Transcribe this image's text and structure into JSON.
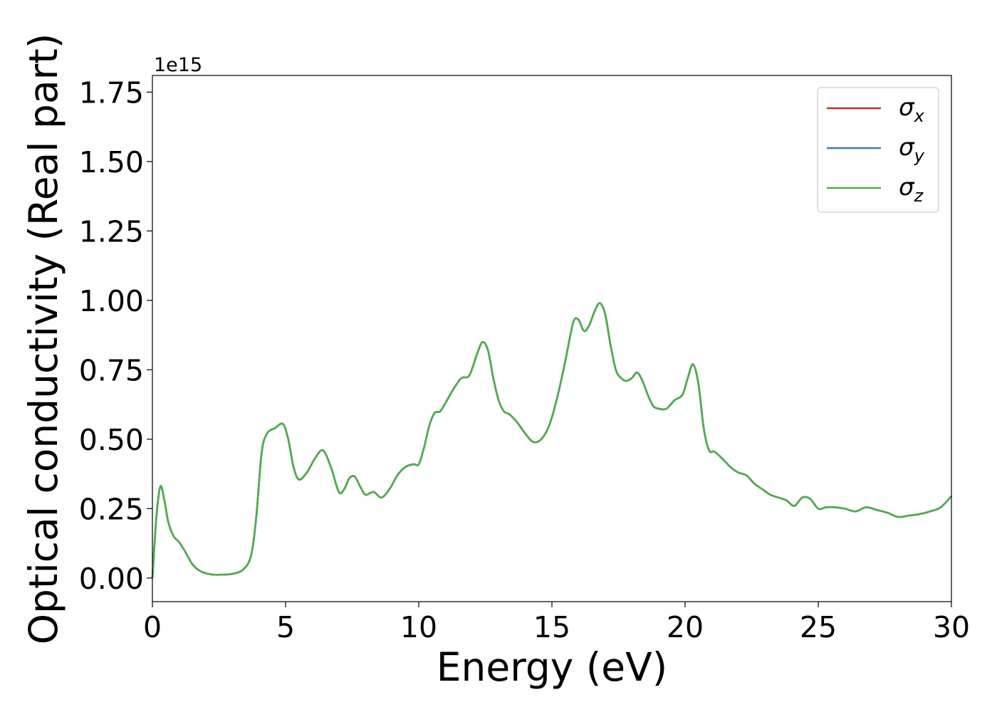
{
  "chart_data": {
    "type": "line",
    "xlabel": "Energy (eV)",
    "ylabel": "Optical conductivity (Real part)",
    "y_offset_label": "1e15",
    "xlim": [
      0,
      30
    ],
    "ylim": [
      -0.085,
      1.81
    ],
    "x_ticks": [
      0,
      5,
      10,
      15,
      20,
      25,
      30
    ],
    "x_tick_labels": [
      "0",
      "5",
      "10",
      "15",
      "20",
      "25",
      "30"
    ],
    "y_ticks": [
      0.0,
      0.25,
      0.5,
      0.75,
      1.0,
      1.25,
      1.5,
      1.75
    ],
    "y_tick_labels": [
      "0.00",
      "0.25",
      "0.50",
      "0.75",
      "1.00",
      "1.25",
      "1.50",
      "1.75"
    ],
    "grid": false,
    "legend_position": "top-right",
    "series": [
      {
        "name": "σx",
        "symbol": "σ",
        "subscript": "x",
        "color": "#d62728",
        "x": [
          0,
          0.15,
          0.3,
          0.45,
          0.6,
          0.8,
          1.0,
          1.2,
          1.5,
          1.8,
          2.2,
          2.6,
          3.0,
          3.4,
          3.7,
          3.9,
          4.1,
          4.3,
          4.6,
          4.9,
          5.1,
          5.3,
          5.5,
          5.8,
          6.1,
          6.4,
          6.7,
          7.0,
          7.2,
          7.4,
          7.6,
          7.8,
          8.0,
          8.3,
          8.6,
          8.9,
          9.2,
          9.5,
          9.8,
          10.0,
          10.2,
          10.4,
          10.6,
          10.8,
          11.0,
          11.3,
          11.6,
          11.9,
          12.2,
          12.4,
          12.6,
          12.8,
          13.0,
          13.2,
          13.4,
          13.7,
          14.0,
          14.3,
          14.6,
          14.9,
          15.2,
          15.5,
          15.8,
          16.0,
          16.2,
          16.4,
          16.6,
          16.8,
          17.0,
          17.2,
          17.4,
          17.6,
          17.8,
          18.0,
          18.2,
          18.4,
          18.6,
          18.8,
          19.0,
          19.3,
          19.6,
          19.9,
          20.1,
          20.3,
          20.5,
          20.7,
          20.9,
          21.1,
          21.4,
          21.7,
          22.0,
          22.3,
          22.6,
          22.9,
          23.2,
          23.5,
          23.8,
          24.1,
          24.4,
          24.7,
          25.0,
          25.3,
          25.6,
          26.0,
          26.4,
          26.8,
          27.2,
          27.6,
          28.0,
          28.4,
          28.8,
          29.2,
          29.6,
          30.0
        ],
        "values": [
          0.0,
          0.22,
          0.33,
          0.28,
          0.2,
          0.15,
          0.13,
          0.1,
          0.05,
          0.025,
          0.013,
          0.012,
          0.015,
          0.03,
          0.08,
          0.22,
          0.45,
          0.52,
          0.54,
          0.555,
          0.5,
          0.4,
          0.355,
          0.38,
          0.43,
          0.46,
          0.4,
          0.31,
          0.32,
          0.36,
          0.365,
          0.33,
          0.3,
          0.31,
          0.29,
          0.32,
          0.37,
          0.4,
          0.41,
          0.41,
          0.47,
          0.55,
          0.595,
          0.6,
          0.63,
          0.68,
          0.72,
          0.73,
          0.81,
          0.85,
          0.82,
          0.72,
          0.64,
          0.6,
          0.59,
          0.56,
          0.52,
          0.49,
          0.5,
          0.55,
          0.65,
          0.78,
          0.92,
          0.93,
          0.89,
          0.91,
          0.96,
          0.99,
          0.95,
          0.84,
          0.75,
          0.72,
          0.71,
          0.72,
          0.74,
          0.71,
          0.66,
          0.62,
          0.61,
          0.61,
          0.64,
          0.66,
          0.72,
          0.77,
          0.7,
          0.54,
          0.46,
          0.455,
          0.43,
          0.4,
          0.38,
          0.37,
          0.34,
          0.32,
          0.3,
          0.29,
          0.28,
          0.26,
          0.29,
          0.285,
          0.25,
          0.255,
          0.255,
          0.25,
          0.24,
          0.255,
          0.245,
          0.235,
          0.22,
          0.225,
          0.23,
          0.24,
          0.255,
          0.295
        ]
      },
      {
        "name": "σy",
        "symbol": "σ",
        "subscript": "y",
        "color": "#377eb8",
        "x": [
          0,
          0.15,
          0.3,
          0.45,
          0.6,
          0.8,
          1.0,
          1.2,
          1.5,
          1.8,
          2.2,
          2.6,
          3.0,
          3.4,
          3.7,
          3.9,
          4.1,
          4.3,
          4.6,
          4.9,
          5.1,
          5.3,
          5.5,
          5.8,
          6.1,
          6.4,
          6.7,
          7.0,
          7.2,
          7.4,
          7.6,
          7.8,
          8.0,
          8.3,
          8.6,
          8.9,
          9.2,
          9.5,
          9.8,
          10.0,
          10.2,
          10.4,
          10.6,
          10.8,
          11.0,
          11.3,
          11.6,
          11.9,
          12.2,
          12.4,
          12.6,
          12.8,
          13.0,
          13.2,
          13.4,
          13.7,
          14.0,
          14.3,
          14.6,
          14.9,
          15.2,
          15.5,
          15.8,
          16.0,
          16.2,
          16.4,
          16.6,
          16.8,
          17.0,
          17.2,
          17.4,
          17.6,
          17.8,
          18.0,
          18.2,
          18.4,
          18.6,
          18.8,
          19.0,
          19.3,
          19.6,
          19.9,
          20.1,
          20.3,
          20.5,
          20.7,
          20.9,
          21.1,
          21.4,
          21.7,
          22.0,
          22.3,
          22.6,
          22.9,
          23.2,
          23.5,
          23.8,
          24.1,
          24.4,
          24.7,
          25.0,
          25.3,
          25.6,
          26.0,
          26.4,
          26.8,
          27.2,
          27.6,
          28.0,
          28.4,
          28.8,
          29.2,
          29.6,
          30.0
        ],
        "values": [
          0.0,
          0.22,
          0.33,
          0.28,
          0.2,
          0.15,
          0.13,
          0.1,
          0.05,
          0.025,
          0.013,
          0.012,
          0.015,
          0.03,
          0.08,
          0.22,
          0.45,
          0.52,
          0.54,
          0.555,
          0.5,
          0.4,
          0.355,
          0.38,
          0.43,
          0.46,
          0.4,
          0.31,
          0.32,
          0.36,
          0.365,
          0.33,
          0.3,
          0.31,
          0.29,
          0.32,
          0.37,
          0.4,
          0.41,
          0.41,
          0.47,
          0.55,
          0.595,
          0.6,
          0.63,
          0.68,
          0.72,
          0.73,
          0.81,
          0.85,
          0.82,
          0.72,
          0.64,
          0.6,
          0.59,
          0.56,
          0.52,
          0.49,
          0.5,
          0.55,
          0.65,
          0.78,
          0.92,
          0.93,
          0.89,
          0.91,
          0.96,
          0.99,
          0.95,
          0.84,
          0.75,
          0.72,
          0.71,
          0.72,
          0.74,
          0.71,
          0.66,
          0.62,
          0.61,
          0.61,
          0.64,
          0.66,
          0.72,
          0.77,
          0.7,
          0.54,
          0.46,
          0.455,
          0.43,
          0.4,
          0.38,
          0.37,
          0.34,
          0.32,
          0.3,
          0.29,
          0.28,
          0.26,
          0.29,
          0.285,
          0.25,
          0.255,
          0.255,
          0.25,
          0.24,
          0.255,
          0.245,
          0.235,
          0.22,
          0.225,
          0.23,
          0.24,
          0.255,
          0.295
        ]
      },
      {
        "name": "σz",
        "symbol": "σ",
        "subscript": "z",
        "color": "#4daf4a",
        "x": [
          0,
          0.15,
          0.3,
          0.45,
          0.6,
          0.8,
          1.0,
          1.2,
          1.5,
          1.8,
          2.2,
          2.6,
          3.0,
          3.4,
          3.7,
          3.9,
          4.1,
          4.3,
          4.6,
          4.9,
          5.1,
          5.3,
          5.5,
          5.8,
          6.1,
          6.4,
          6.7,
          7.0,
          7.2,
          7.4,
          7.6,
          7.8,
          8.0,
          8.3,
          8.6,
          8.9,
          9.2,
          9.5,
          9.8,
          10.0,
          10.2,
          10.4,
          10.6,
          10.8,
          11.0,
          11.3,
          11.6,
          11.9,
          12.2,
          12.4,
          12.6,
          12.8,
          13.0,
          13.2,
          13.4,
          13.7,
          14.0,
          14.3,
          14.6,
          14.9,
          15.2,
          15.5,
          15.8,
          16.0,
          16.2,
          16.4,
          16.6,
          16.8,
          17.0,
          17.2,
          17.4,
          17.6,
          17.8,
          18.0,
          18.2,
          18.4,
          18.6,
          18.8,
          19.0,
          19.3,
          19.6,
          19.9,
          20.1,
          20.3,
          20.5,
          20.7,
          20.9,
          21.1,
          21.4,
          21.7,
          22.0,
          22.3,
          22.6,
          22.9,
          23.2,
          23.5,
          23.8,
          24.1,
          24.4,
          24.7,
          25.0,
          25.3,
          25.6,
          26.0,
          26.4,
          26.8,
          27.2,
          27.6,
          28.0,
          28.4,
          28.8,
          29.2,
          29.6,
          30.0
        ],
        "values": [
          0.0,
          0.22,
          0.33,
          0.28,
          0.2,
          0.15,
          0.13,
          0.1,
          0.05,
          0.025,
          0.013,
          0.012,
          0.015,
          0.03,
          0.08,
          0.22,
          0.45,
          0.52,
          0.54,
          0.555,
          0.5,
          0.4,
          0.355,
          0.38,
          0.43,
          0.46,
          0.4,
          0.31,
          0.32,
          0.36,
          0.365,
          0.33,
          0.3,
          0.31,
          0.29,
          0.32,
          0.37,
          0.4,
          0.41,
          0.41,
          0.47,
          0.55,
          0.595,
          0.6,
          0.63,
          0.68,
          0.72,
          0.73,
          0.81,
          0.85,
          0.82,
          0.72,
          0.64,
          0.6,
          0.59,
          0.56,
          0.52,
          0.49,
          0.5,
          0.55,
          0.65,
          0.78,
          0.92,
          0.93,
          0.89,
          0.91,
          0.96,
          0.99,
          0.95,
          0.84,
          0.75,
          0.72,
          0.71,
          0.72,
          0.74,
          0.71,
          0.66,
          0.62,
          0.61,
          0.61,
          0.64,
          0.66,
          0.72,
          0.77,
          0.7,
          0.54,
          0.46,
          0.455,
          0.43,
          0.4,
          0.38,
          0.37,
          0.34,
          0.32,
          0.3,
          0.29,
          0.28,
          0.26,
          0.29,
          0.285,
          0.25,
          0.255,
          0.255,
          0.25,
          0.24,
          0.255,
          0.245,
          0.235,
          0.22,
          0.225,
          0.23,
          0.24,
          0.255,
          0.295
        ]
      }
    ]
  }
}
